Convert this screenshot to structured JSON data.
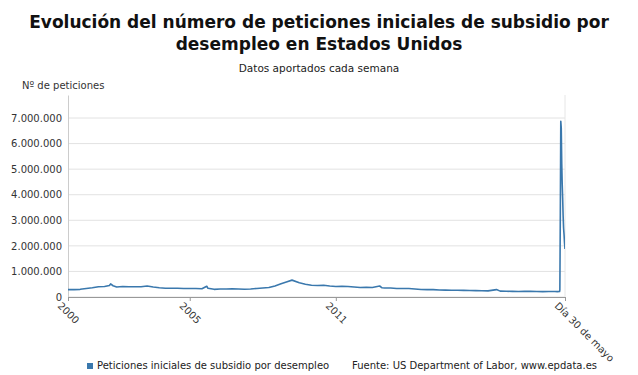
{
  "chart_data": {
    "type": "line",
    "title": "Evolución del número de peticiones iniciales de subsidio por desempleo en Estados Unidos",
    "subtitle": "Datos aportados cada semana",
    "y_label": "Nº de peticiones",
    "source": "Fuente: US Department of Labor, www.epdata.es",
    "x": [
      2000.0,
      2000.25,
      2000.5,
      2000.75,
      2001.0,
      2001.25,
      2001.5,
      2001.7,
      2001.75,
      2001.85,
      2002.0,
      2002.25,
      2002.5,
      2002.75,
      2003.0,
      2003.25,
      2003.5,
      2003.75,
      2004.0,
      2004.25,
      2004.5,
      2004.75,
      2005.0,
      2005.25,
      2005.5,
      2005.7,
      2005.75,
      2006.0,
      2006.25,
      2006.5,
      2006.75,
      2007.0,
      2007.25,
      2007.5,
      2007.75,
      2008.0,
      2008.25,
      2008.5,
      2008.75,
      2009.0,
      2009.2,
      2009.5,
      2009.75,
      2010.0,
      2010.25,
      2010.5,
      2010.75,
      2011.0,
      2011.25,
      2011.5,
      2011.75,
      2012.0,
      2012.25,
      2012.5,
      2012.8,
      2012.9,
      2013.0,
      2013.25,
      2013.5,
      2013.75,
      2014.0,
      2014.25,
      2014.5,
      2014.75,
      2015.0,
      2015.25,
      2015.5,
      2015.75,
      2016.0,
      2016.25,
      2016.5,
      2016.75,
      2017.0,
      2017.25,
      2017.6,
      2017.75,
      2018.0,
      2018.25,
      2018.5,
      2018.75,
      2019.0,
      2019.25,
      2019.5,
      2019.75,
      2020.0,
      2020.1,
      2020.19,
      2020.202,
      2020.221,
      2020.24,
      2020.259,
      2020.279,
      2020.298,
      2020.317,
      2020.336,
      2020.355,
      2020.374,
      2020.393,
      2020.413
    ],
    "series": [
      {
        "name": "Peticiones iniciales de subsidio por desempleo",
        "color": "#3a78ad",
        "values": [
          290000,
          290000,
          300000,
          330000,
          360000,
          400000,
          410000,
          450000,
          510000,
          440000,
          390000,
          410000,
          400000,
          400000,
          400000,
          430000,
          390000,
          360000,
          345000,
          340000,
          340000,
          330000,
          330000,
          330000,
          320000,
          420000,
          340000,
          300000,
          310000,
          315000,
          320000,
          315000,
          305000,
          315000,
          335000,
          350000,
          370000,
          430000,
          520000,
          600000,
          660000,
          560000,
          500000,
          460000,
          450000,
          460000,
          430000,
          410000,
          420000,
          410000,
          390000,
          370000,
          380000,
          370000,
          430000,
          360000,
          350000,
          350000,
          330000,
          330000,
          330000,
          310000,
          295000,
          290000,
          290000,
          275000,
          270000,
          265000,
          265000,
          260000,
          255000,
          250000,
          245000,
          240000,
          290000,
          230000,
          225000,
          220000,
          215000,
          220000,
          220000,
          215000,
          210000,
          215000,
          215000,
          210000,
          215000,
          282000,
          3307000,
          6867000,
          6615000,
          5237000,
          4442000,
          3867000,
          3176000,
          2687000,
          2446000,
          2123000,
          1877000
        ]
      }
    ],
    "xlim": [
      2000,
      2020.413
    ],
    "xticks": [
      2000,
      2005,
      2011,
      {
        "value": 2020.413,
        "label": "Día 30 de mayo"
      }
    ],
    "ylim": [
      0,
      7900000
    ],
    "yticks": [
      0,
      {
        "value": 1000000,
        "label": "1.000.000"
      },
      {
        "value": 2000000,
        "label": "2.000.000"
      },
      {
        "value": 3000000,
        "label": "3.000.000"
      },
      {
        "value": 4000000,
        "label": "4.000.000"
      },
      {
        "value": 5000000,
        "label": "5.000.000"
      },
      {
        "value": 6000000,
        "label": "6.000.000"
      },
      {
        "value": 7000000,
        "label": "7.000.000"
      }
    ],
    "grid": true,
    "legend": "bottom"
  }
}
